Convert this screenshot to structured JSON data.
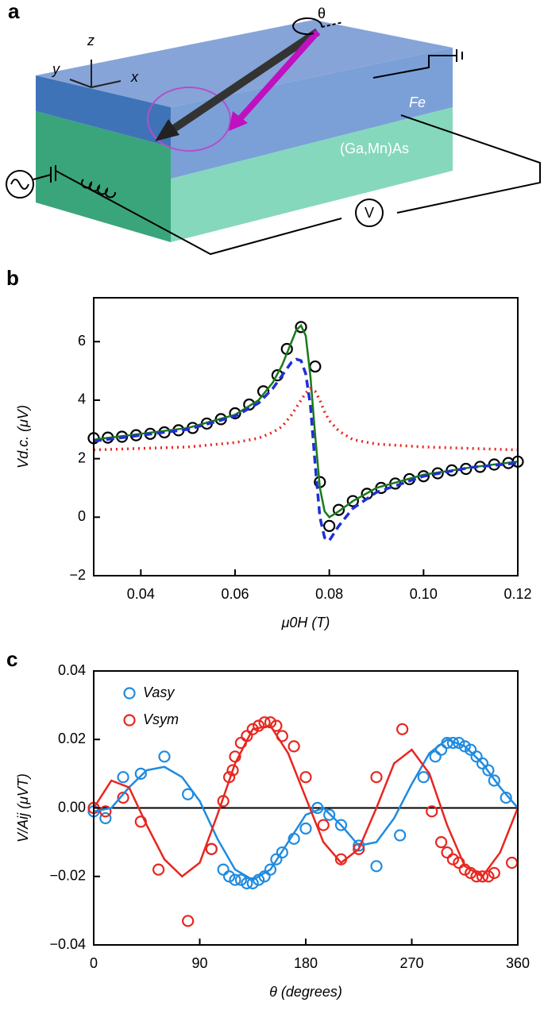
{
  "panel_a": {
    "label": "a",
    "theta": "θ",
    "axis_z": "z",
    "axis_y": "y",
    "axis_x": "x",
    "layer_top": "Fe",
    "layer_bottom": "(Ga,Mn)As",
    "voltmeter": "V"
  },
  "chart_data": [
    {
      "type": "line",
      "panel_label": "b",
      "xlabel": "μ0H (T)",
      "ylabel": "Vd.c. (μV)",
      "xlim": [
        0.03,
        0.12
      ],
      "ylim": [
        -2,
        7.5
      ],
      "xticks": [
        0.04,
        0.06,
        0.08,
        {
          "value": 0.1,
          "label": "0.10"
        },
        0.12
      ],
      "yticks": [
        {
          "value": -2,
          "label": "−2"
        },
        0,
        2,
        4,
        6
      ],
      "series": [
        {
          "style": "markers",
          "color": "#000000",
          "x": [
            0.03,
            0.033,
            0.036,
            0.039,
            0.042,
            0.045,
            0.048,
            0.051,
            0.054,
            0.057,
            0.06,
            0.063,
            0.066,
            0.069,
            0.071,
            0.074,
            0.077,
            0.078,
            0.08,
            0.082,
            0.085,
            0.088,
            0.091,
            0.094,
            0.097,
            0.1,
            0.103,
            0.106,
            0.109,
            0.112,
            0.115,
            0.118,
            0.12
          ],
          "values": [
            2.7,
            2.72,
            2.75,
            2.8,
            2.85,
            2.9,
            2.97,
            3.05,
            3.2,
            3.35,
            3.55,
            3.85,
            4.3,
            4.85,
            5.75,
            6.5,
            5.15,
            1.2,
            -0.3,
            0.25,
            0.55,
            0.8,
            1.0,
            1.15,
            1.3,
            1.4,
            1.5,
            1.6,
            1.65,
            1.72,
            1.8,
            1.85,
            1.9
          ]
        },
        {
          "style": "solid",
          "color": "#1a7a1a",
          "x": [
            0.03,
            0.04,
            0.05,
            0.06,
            0.065,
            0.068,
            0.07,
            0.072,
            0.073,
            0.074,
            0.075,
            0.076,
            0.077,
            0.078,
            0.079,
            0.08,
            0.082,
            0.085,
            0.09,
            0.1,
            0.11,
            0.12
          ],
          "values": [
            2.65,
            2.85,
            3.05,
            3.5,
            4.0,
            4.6,
            5.2,
            6.0,
            6.4,
            6.55,
            6.2,
            4.8,
            2.8,
            1.0,
            0.2,
            0.0,
            0.2,
            0.55,
            1.0,
            1.45,
            1.7,
            1.9
          ]
        },
        {
          "style": "dashed",
          "color": "#1f2fd6",
          "x": [
            0.03,
            0.04,
            0.05,
            0.06,
            0.065,
            0.068,
            0.07,
            0.072,
            0.073,
            0.074,
            0.075,
            0.076,
            0.077,
            0.078,
            0.079,
            0.08,
            0.082,
            0.085,
            0.09,
            0.1,
            0.11,
            0.12
          ],
          "values": [
            2.6,
            2.8,
            3.0,
            3.45,
            3.9,
            4.4,
            4.85,
            5.3,
            5.4,
            5.35,
            4.9,
            3.8,
            1.8,
            0.0,
            -0.7,
            -0.8,
            -0.3,
            0.3,
            0.85,
            1.4,
            1.7,
            1.85
          ]
        },
        {
          "style": "dotted",
          "color": "#e8261f",
          "x": [
            0.03,
            0.04,
            0.05,
            0.06,
            0.065,
            0.068,
            0.07,
            0.072,
            0.073,
            0.074,
            0.075,
            0.076,
            0.077,
            0.078,
            0.079,
            0.08,
            0.082,
            0.085,
            0.09,
            0.1,
            0.11,
            0.12
          ],
          "values": [
            2.3,
            2.35,
            2.4,
            2.55,
            2.7,
            2.9,
            3.1,
            3.5,
            3.75,
            4.0,
            4.25,
            4.4,
            4.3,
            4.0,
            3.6,
            3.3,
            2.95,
            2.65,
            2.5,
            2.4,
            2.35,
            2.3
          ]
        }
      ]
    },
    {
      "type": "line",
      "panel_label": "c",
      "xlabel": "θ (degrees)",
      "ylabel": "V/Aij (μVT)",
      "xlim": [
        0,
        360
      ],
      "ylim": [
        -0.04,
        0.04
      ],
      "reference_line": 0,
      "xticks": [
        0,
        90,
        180,
        270,
        360
      ],
      "yticks": [
        {
          "value": -0.04,
          "label": "−0.04"
        },
        {
          "value": -0.02,
          "label": "−0.02"
        },
        {
          "value": 0,
          "label": "0.00"
        },
        0.02,
        0.04
      ],
      "series": [
        {
          "name": "Vasy",
          "style": "markers",
          "color": "#1f8be0",
          "x": [
            0,
            10,
            25,
            40,
            60,
            80,
            100,
            110,
            115,
            120,
            125,
            130,
            135,
            140,
            145,
            150,
            155,
            160,
            170,
            180,
            190,
            200,
            210,
            225,
            240,
            260,
            280,
            290,
            295,
            300,
            305,
            310,
            315,
            320,
            325,
            330,
            335,
            340,
            350
          ],
          "values": [
            -0.001,
            -0.003,
            0.009,
            0.01,
            0.015,
            0.004,
            -0.012,
            -0.018,
            -0.02,
            -0.021,
            -0.021,
            -0.022,
            -0.022,
            -0.021,
            -0.02,
            -0.018,
            -0.015,
            -0.013,
            -0.009,
            -0.006,
            0.0,
            -0.002,
            -0.005,
            -0.011,
            -0.017,
            -0.008,
            0.009,
            0.015,
            0.017,
            0.019,
            0.019,
            0.019,
            0.018,
            0.017,
            0.015,
            0.013,
            0.011,
            0.008,
            0.003
          ]
        },
        {
          "name": "Vsym",
          "style": "markers",
          "color": "#e8261f",
          "x": [
            0,
            10,
            25,
            40,
            55,
            80,
            100,
            110,
            115,
            118,
            120,
            125,
            130,
            135,
            140,
            145,
            150,
            155,
            160,
            170,
            180,
            195,
            210,
            225,
            240,
            262,
            287,
            295,
            300,
            305,
            310,
            315,
            320,
            325,
            330,
            335,
            340,
            355
          ],
          "values": [
            0.0,
            -0.001,
            0.003,
            -0.004,
            -0.018,
            -0.033,
            -0.012,
            0.002,
            0.009,
            0.011,
            0.015,
            0.019,
            0.021,
            0.023,
            0.024,
            0.025,
            0.025,
            0.024,
            0.021,
            0.018,
            0.009,
            -0.005,
            -0.015,
            -0.012,
            0.009,
            0.023,
            -0.001,
            -0.01,
            -0.013,
            -0.015,
            -0.016,
            -0.018,
            -0.019,
            -0.02,
            -0.02,
            -0.02,
            -0.019,
            -0.016
          ]
        },
        {
          "style": "solid",
          "color": "#1f8be0",
          "x": [
            0,
            15,
            30,
            45,
            60,
            75,
            90,
            105,
            120,
            135,
            150,
            165,
            180,
            195,
            210,
            225,
            240,
            255,
            270,
            285,
            300,
            315,
            330,
            345,
            360
          ],
          "values": [
            -0.001,
            0.0,
            0.006,
            0.011,
            0.012,
            0.009,
            0.002,
            -0.009,
            -0.018,
            -0.021,
            -0.018,
            -0.01,
            -0.002,
            0.0,
            -0.005,
            -0.011,
            -0.01,
            -0.003,
            0.007,
            0.016,
            0.02,
            0.018,
            0.013,
            0.006,
            0.0
          ]
        },
        {
          "style": "solid",
          "color": "#e8261f",
          "x": [
            0,
            15,
            30,
            45,
            60,
            75,
            90,
            105,
            120,
            135,
            150,
            165,
            180,
            195,
            210,
            225,
            240,
            255,
            270,
            285,
            300,
            315,
            330,
            345,
            360
          ],
          "values": [
            0.0,
            0.008,
            0.006,
            -0.005,
            -0.015,
            -0.02,
            -0.016,
            -0.002,
            0.013,
            0.023,
            0.024,
            0.016,
            0.003,
            -0.01,
            -0.016,
            -0.012,
            0.0,
            0.013,
            0.017,
            0.01,
            -0.005,
            -0.017,
            -0.02,
            -0.013,
            0.0
          ]
        }
      ]
    }
  ]
}
